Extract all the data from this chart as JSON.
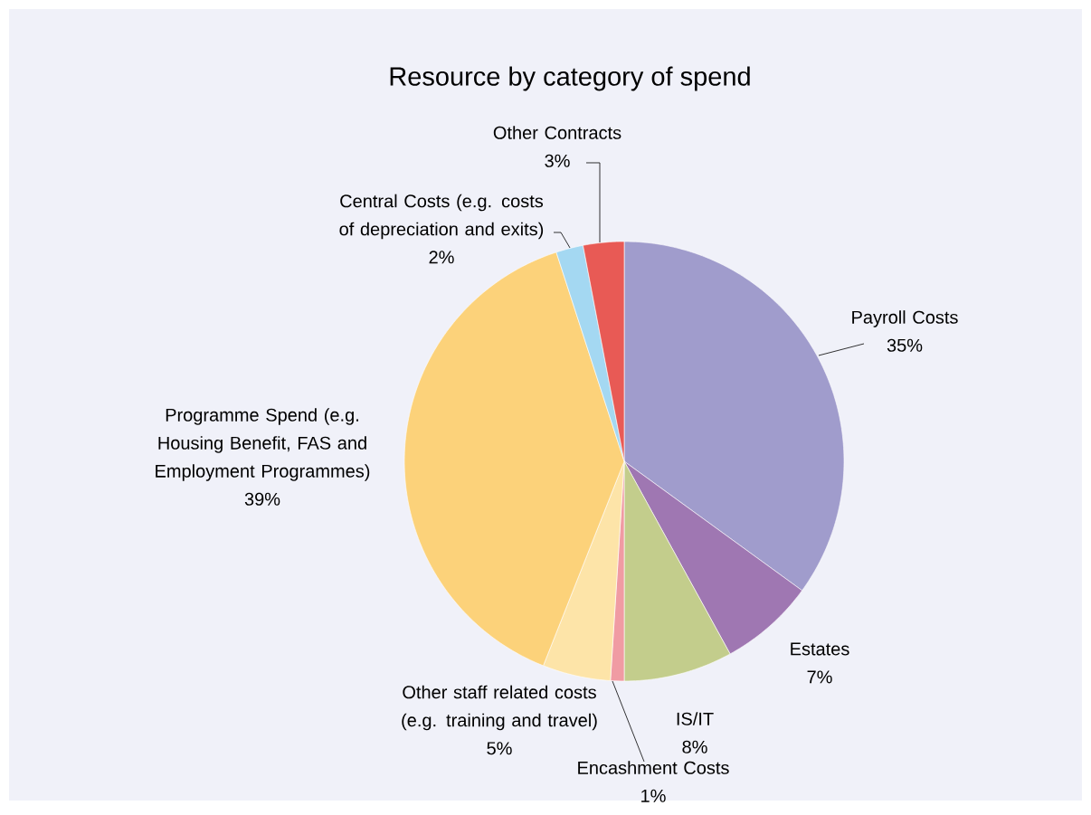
{
  "chart_data": {
    "type": "pie",
    "title": "Resource by category of spend",
    "categories": [
      "Payroll Costs",
      "Estates",
      "IS/IT",
      "Encashment Costs",
      "Other staff related costs (e.g. training and travel)",
      "Programme Spend (e.g. Housing Benefit, FAS and Employment Programmes)",
      "Central Costs (e.g. costs of depreciation and exits)",
      "Other Contracts"
    ],
    "values": [
      35,
      7,
      8,
      1,
      5,
      39,
      2,
      3
    ],
    "value_labels": [
      "35%",
      "7%",
      "8%",
      "1%",
      "5%",
      "39%",
      "2%",
      "3%"
    ],
    "colors": [
      "#a09ccc",
      "#9f77b2",
      "#c3cd8c",
      "#f09ba3",
      "#fde4a8",
      "#fcd27a",
      "#a4d8f2",
      "#e85a55"
    ]
  }
}
